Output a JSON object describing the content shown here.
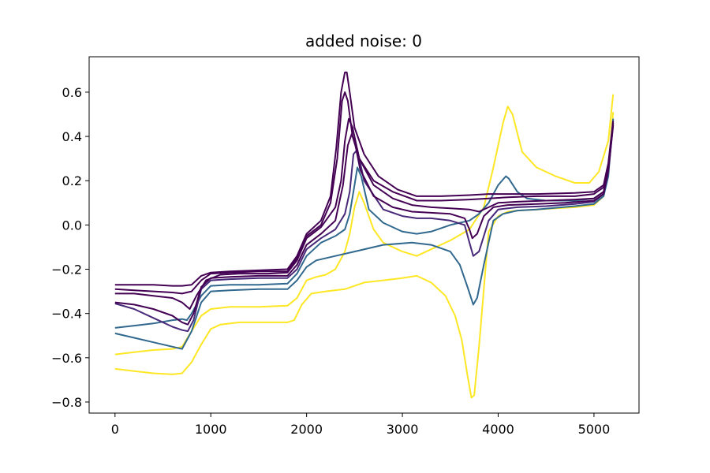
{
  "chart_data": {
    "type": "line",
    "title": "added noise: 0",
    "xlabel": "",
    "ylabel": "",
    "xlim": [
      -270,
      5470
    ],
    "ylim": [
      -0.85,
      0.76
    ],
    "xticks": [
      0,
      1000,
      2000,
      3000,
      4000,
      5000
    ],
    "xtick_labels": [
      "0",
      "1000",
      "2000",
      "3000",
      "4000",
      "5000"
    ],
    "yticks": [
      -0.8,
      -0.6,
      -0.4,
      -0.2,
      0.0,
      0.2,
      0.4,
      0.6
    ],
    "ytick_labels": [
      "−0.8",
      "−0.6",
      "−0.4",
      "−0.2",
      "0.0",
      "0.2",
      "0.4",
      "0.6"
    ],
    "grid": false,
    "colors": {
      "dark_purple": "#440154",
      "mid_purple": "#482878",
      "teal": "#31688e",
      "yellow": "#fde725"
    },
    "series": [
      {
        "color": "#fde725",
        "x": [
          0,
          200,
          400,
          600,
          700,
          800,
          900,
          1000,
          1100,
          1300,
          1600,
          1800,
          1870,
          1950,
          2050,
          2200,
          2400,
          2600,
          2800,
          3000,
          3150,
          3300,
          3450,
          3550,
          3620,
          3680,
          3720,
          3750,
          3800,
          3900,
          4000,
          4100,
          4200,
          4400,
          4600,
          4800,
          5000,
          5100,
          5150,
          5200
        ],
        "y": [
          -0.65,
          -0.66,
          -0.67,
          -0.675,
          -0.67,
          -0.62,
          -0.54,
          -0.47,
          -0.45,
          -0.44,
          -0.44,
          -0.44,
          -0.43,
          -0.36,
          -0.31,
          -0.3,
          -0.29,
          -0.26,
          -0.25,
          -0.24,
          -0.23,
          -0.26,
          -0.32,
          -0.41,
          -0.52,
          -0.68,
          -0.78,
          -0.77,
          -0.55,
          -0.03,
          0.04,
          0.06,
          0.065,
          0.07,
          0.075,
          0.08,
          0.09,
          0.13,
          0.25,
          0.51
        ]
      },
      {
        "color": "#fde725",
        "x": [
          0,
          200,
          400,
          600,
          700,
          800,
          900,
          1000,
          1200,
          1500,
          1800,
          1900,
          2000,
          2100,
          2200,
          2300,
          2400,
          2450,
          2500,
          2550,
          2600,
          2700,
          2800,
          3000,
          3150,
          3300,
          3500,
          3700,
          3850,
          3950,
          4050,
          4100,
          4150,
          4250,
          4400,
          4600,
          4800,
          4950,
          5050,
          5150,
          5200
        ],
        "y": [
          -0.585,
          -0.575,
          -0.565,
          -0.56,
          -0.55,
          -0.48,
          -0.41,
          -0.38,
          -0.37,
          -0.37,
          -0.365,
          -0.33,
          -0.25,
          -0.235,
          -0.225,
          -0.2,
          -0.12,
          -0.04,
          0.08,
          0.15,
          0.1,
          -0.02,
          -0.08,
          -0.12,
          -0.14,
          -0.11,
          -0.07,
          -0.02,
          0.08,
          0.26,
          0.46,
          0.535,
          0.5,
          0.33,
          0.26,
          0.22,
          0.19,
          0.19,
          0.24,
          0.38,
          0.59
        ]
      },
      {
        "color": "#31688e",
        "x": [
          0,
          200,
          400,
          600,
          700,
          800,
          900,
          1000,
          1200,
          1500,
          1800,
          1900,
          2000,
          2100,
          2300,
          2500,
          2800,
          3100,
          3300,
          3500,
          3600,
          3680,
          3740,
          3780,
          3850,
          3950,
          4050,
          4200,
          4400,
          4800,
          5000,
          5100,
          5150,
          5200
        ],
        "y": [
          -0.49,
          -0.51,
          -0.53,
          -0.55,
          -0.56,
          -0.48,
          -0.35,
          -0.3,
          -0.295,
          -0.29,
          -0.29,
          -0.25,
          -0.19,
          -0.16,
          -0.14,
          -0.12,
          -0.09,
          -0.08,
          -0.09,
          -0.12,
          -0.18,
          -0.28,
          -0.36,
          -0.33,
          -0.18,
          0.02,
          0.05,
          0.065,
          0.07,
          0.085,
          0.095,
          0.13,
          0.22,
          0.48
        ]
      },
      {
        "color": "#31688e",
        "x": [
          0,
          200,
          400,
          600,
          700,
          750,
          800,
          900,
          1000,
          1200,
          1500,
          1800,
          1900,
          2000,
          2150,
          2300,
          2400,
          2450,
          2500,
          2530,
          2570,
          2650,
          2800,
          3000,
          3150,
          3300,
          3500,
          3700,
          3800,
          3900,
          4000,
          4080,
          4110,
          4200,
          4300,
          4500,
          4800,
          5000,
          5100,
          5150,
          5200
        ],
        "y": [
          -0.465,
          -0.455,
          -0.445,
          -0.43,
          -0.425,
          -0.43,
          -0.4,
          -0.32,
          -0.275,
          -0.27,
          -0.27,
          -0.265,
          -0.22,
          -0.14,
          -0.08,
          -0.05,
          -0.02,
          0.05,
          0.18,
          0.26,
          0.22,
          0.07,
          0.01,
          -0.03,
          -0.04,
          -0.03,
          0.0,
          0.02,
          0.05,
          0.1,
          0.18,
          0.22,
          0.21,
          0.15,
          0.12,
          0.11,
          0.11,
          0.12,
          0.15,
          0.25,
          0.47
        ]
      },
      {
        "color": "#482878",
        "x": [
          0,
          200,
          400,
          600,
          700,
          760,
          820,
          900,
          1000,
          1200,
          1500,
          1800,
          1900,
          2000,
          2150,
          2300,
          2400,
          2450,
          2490,
          2530,
          2600,
          2800,
          3000,
          3150,
          3300,
          3500,
          3650,
          3700,
          3740,
          3800,
          3900,
          4000,
          4200,
          4500,
          4800,
          5000,
          5100,
          5150,
          5200
        ],
        "y": [
          -0.355,
          -0.38,
          -0.42,
          -0.46,
          -0.475,
          -0.48,
          -0.43,
          -0.29,
          -0.25,
          -0.245,
          -0.24,
          -0.24,
          -0.2,
          -0.11,
          -0.06,
          -0.02,
          0.05,
          0.15,
          0.32,
          0.34,
          0.2,
          0.07,
          0.04,
          0.03,
          0.03,
          0.02,
          0.0,
          -0.08,
          -0.14,
          -0.12,
          0.02,
          0.07,
          0.08,
          0.085,
          0.095,
          0.105,
          0.14,
          0.24,
          0.45
        ]
      },
      {
        "color": "#440154",
        "x": [
          0,
          200,
          400,
          600,
          700,
          760,
          820,
          900,
          1000,
          1200,
          1500,
          1800,
          1900,
          2000,
          2150,
          2300,
          2380,
          2430,
          2470,
          2500,
          2560,
          2700,
          2900,
          3100,
          3300,
          3500,
          3650,
          3700,
          3730,
          3780,
          3850,
          3950,
          4100,
          4400,
          4700,
          5000,
          5100,
          5150,
          5200
        ],
        "y": [
          -0.35,
          -0.36,
          -0.38,
          -0.41,
          -0.44,
          -0.45,
          -0.4,
          -0.28,
          -0.24,
          -0.235,
          -0.23,
          -0.23,
          -0.18,
          -0.09,
          -0.04,
          0.02,
          0.18,
          0.36,
          0.41,
          0.38,
          0.25,
          0.13,
          0.08,
          0.06,
          0.055,
          0.05,
          0.03,
          -0.02,
          -0.06,
          -0.04,
          0.04,
          0.08,
          0.09,
          0.095,
          0.1,
          0.11,
          0.14,
          0.25,
          0.46
        ]
      },
      {
        "color": "#440154",
        "x": [
          0,
          200,
          400,
          600,
          700,
          780,
          850,
          950,
          1100,
          1300,
          1600,
          1800,
          1900,
          2000,
          2150,
          2300,
          2360,
          2400,
          2440,
          2480,
          2550,
          2700,
          2900,
          3100,
          3300,
          3500,
          3700,
          3800,
          3900,
          4000,
          4200,
          4500,
          4800,
          5000,
          5100,
          5150,
          5200
        ],
        "y": [
          -0.31,
          -0.31,
          -0.32,
          -0.33,
          -0.35,
          -0.38,
          -0.32,
          -0.25,
          -0.225,
          -0.22,
          -0.22,
          -0.215,
          -0.16,
          -0.06,
          -0.01,
          0.08,
          0.2,
          0.38,
          0.48,
          0.44,
          0.3,
          0.18,
          0.12,
          0.09,
          0.08,
          0.075,
          0.07,
          0.06,
          0.08,
          0.1,
          0.105,
          0.11,
          0.115,
          0.12,
          0.15,
          0.25,
          0.45
        ]
      },
      {
        "color": "#440154",
        "x": [
          0,
          200,
          400,
          600,
          700,
          800,
          900,
          1000,
          1200,
          1500,
          1800,
          1900,
          2000,
          2150,
          2250,
          2320,
          2370,
          2400,
          2430,
          2480,
          2550,
          2700,
          2900,
          3150,
          3400,
          3700,
          3900,
          4100,
          4400,
          4800,
          5000,
          5100,
          5150,
          5200
        ],
        "y": [
          -0.29,
          -0.295,
          -0.3,
          -0.305,
          -0.31,
          -0.3,
          -0.25,
          -0.22,
          -0.215,
          -0.21,
          -0.21,
          -0.15,
          -0.05,
          0.0,
          0.1,
          0.3,
          0.56,
          0.6,
          0.56,
          0.4,
          0.3,
          0.2,
          0.15,
          0.11,
          0.11,
          0.115,
          0.12,
          0.125,
          0.13,
          0.13,
          0.14,
          0.17,
          0.27,
          0.46
        ]
      },
      {
        "color": "#440154",
        "x": [
          0,
          200,
          400,
          600,
          700,
          800,
          900,
          1000,
          1200,
          1500,
          1800,
          1900,
          2000,
          2150,
          2250,
          2310,
          2360,
          2400,
          2420,
          2450,
          2500,
          2600,
          2750,
          2950,
          3150,
          3400,
          3700,
          3900,
          4100,
          4400,
          4800,
          5000,
          5100,
          5150,
          5200
        ],
        "y": [
          -0.27,
          -0.27,
          -0.27,
          -0.275,
          -0.275,
          -0.27,
          -0.23,
          -0.215,
          -0.21,
          -0.205,
          -0.2,
          -0.14,
          -0.04,
          0.02,
          0.13,
          0.35,
          0.6,
          0.69,
          0.69,
          0.6,
          0.44,
          0.32,
          0.22,
          0.16,
          0.13,
          0.13,
          0.135,
          0.14,
          0.14,
          0.14,
          0.145,
          0.15,
          0.18,
          0.28,
          0.47
        ]
      }
    ]
  }
}
